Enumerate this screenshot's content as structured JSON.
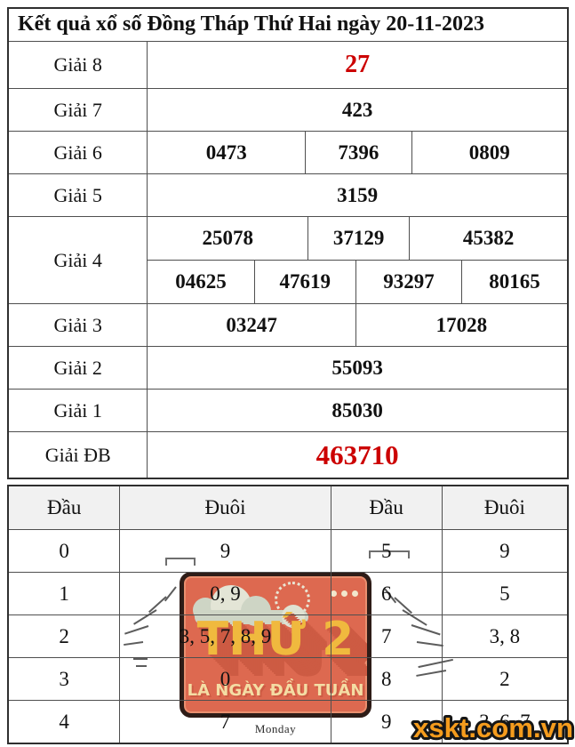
{
  "page": {
    "watermark": "xskt.com.vn"
  },
  "colors": {
    "highlight": "#cc0000",
    "watermark_fill": "#f59c1d",
    "watermark_outline": "#161616",
    "sticker_bg": "#dd6950",
    "sticker_border": "#2e1c17",
    "sticker_text": "#f0b93e",
    "sticker_shadow": "#cd5b43",
    "sticker_subtitle": "#f4dda4"
  },
  "results_table": {
    "title": "Kết quả xổ số Đồng Tháp Thứ Hai ngày 20-11-2023",
    "rows": [
      {
        "label": "Giải 8",
        "highlight": true,
        "cells": [
          [
            "27"
          ]
        ]
      },
      {
        "label": "Giải 7",
        "highlight": false,
        "cells": [
          [
            "423"
          ]
        ]
      },
      {
        "label": "Giải 6",
        "highlight": false,
        "cells": [
          [
            "0473",
            "7396",
            "0809"
          ]
        ]
      },
      {
        "label": "Giải 5",
        "highlight": false,
        "cells": [
          [
            "3159"
          ]
        ]
      },
      {
        "label": "Giải 4",
        "highlight": false,
        "cells": [
          [
            "25078",
            "37129",
            "45382"
          ],
          [
            "04625",
            "47619",
            "93297",
            "80165"
          ]
        ]
      },
      {
        "label": "Giải 3",
        "highlight": false,
        "cells": [
          [
            "03247",
            "17028"
          ]
        ]
      },
      {
        "label": "Giải 2",
        "highlight": false,
        "cells": [
          [
            "55093"
          ]
        ]
      },
      {
        "label": "Giải 1",
        "highlight": false,
        "cells": [
          [
            "85030"
          ]
        ]
      },
      {
        "label": "Giải ĐB",
        "highlight": true,
        "cells": [
          [
            "463710"
          ]
        ]
      }
    ]
  },
  "head_tail_table": {
    "headers": [
      "Đầu",
      "Đuôi",
      "Đầu",
      "Đuôi"
    ],
    "rows": [
      [
        "0",
        "9",
        "5",
        "9"
      ],
      [
        "1",
        "0, 9",
        "6",
        "5"
      ],
      [
        "2",
        "3, 5, 7, 8, 9",
        "7",
        "3, 8"
      ],
      [
        "3",
        "0",
        "8",
        "2"
      ],
      [
        "4",
        "7",
        "9",
        "3, 6, 7"
      ]
    ]
  },
  "sticker": {
    "title": "THỨ 2",
    "subtitle": "LÀ NGÀY ĐẦU TUẦN",
    "caption": "Monday"
  }
}
